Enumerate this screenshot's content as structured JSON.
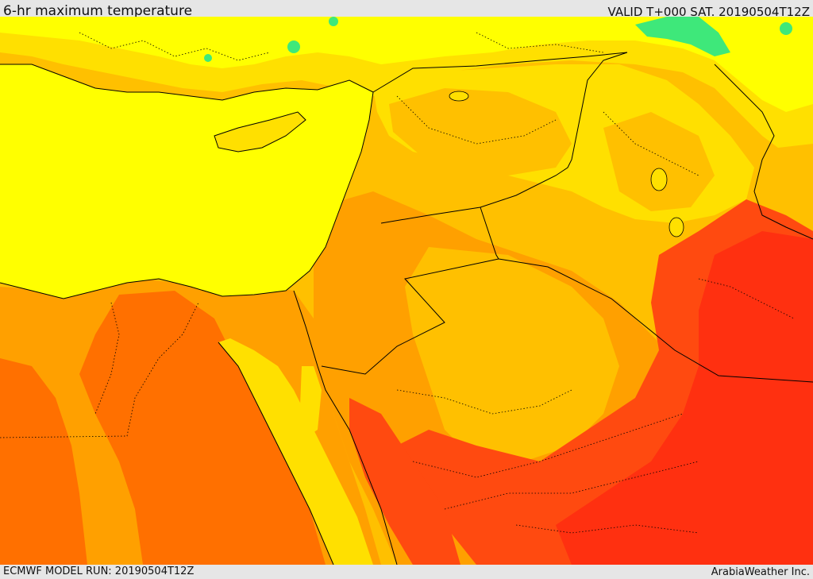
{
  "header": {
    "title": "6-hr maximum temperature",
    "valid": "VALID T+000 SAT. 20190504T12Z"
  },
  "footer": {
    "model_run": "ECMWF MODEL RUN: 20190504T12Z",
    "credit": "ArabiaWeather Inc."
  },
  "colors": {
    "sea": "#ffff00",
    "warm_yellow": "#ffe000",
    "light_orange": "#ffc000",
    "orange": "#ffa000",
    "dark_orange": "#ff7000",
    "red_orange": "#ff4a10",
    "red": "#ff3010",
    "cool_green": "#3ee87a",
    "border": "#000000"
  }
}
